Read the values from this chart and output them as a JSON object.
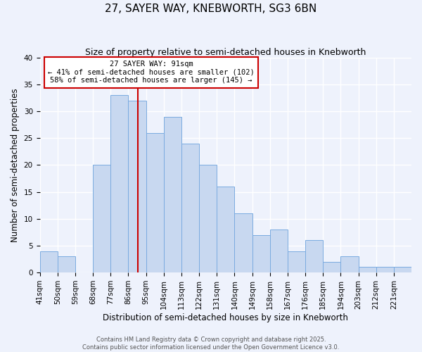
{
  "title": "27, SAYER WAY, KNEBWORTH, SG3 6BN",
  "subtitle": "Size of property relative to semi-detached houses in Knebworth",
  "xlabel": "Distribution of semi-detached houses by size in Knebworth",
  "ylabel": "Number of semi-detached properties",
  "bar_labels": [
    "41sqm",
    "50sqm",
    "59sqm",
    "68sqm",
    "77sqm",
    "86sqm",
    "95sqm",
    "104sqm",
    "113sqm",
    "122sqm",
    "131sqm",
    "140sqm",
    "149sqm",
    "158sqm",
    "167sqm",
    "176sqm",
    "185sqm",
    "194sqm",
    "203sqm",
    "212sqm",
    "221sqm"
  ],
  "bar_values": [
    4,
    3,
    0,
    20,
    33,
    32,
    26,
    29,
    24,
    20,
    16,
    11,
    7,
    8,
    4,
    6,
    2,
    3,
    1,
    1,
    1
  ],
  "bin_edges": [
    41,
    50,
    59,
    68,
    77,
    86,
    95,
    104,
    113,
    122,
    131,
    140,
    149,
    158,
    167,
    176,
    185,
    194,
    203,
    212,
    221,
    230
  ],
  "bar_color": "#c8d8f0",
  "bar_edge_color": "#7aabe0",
  "vline_x": 91,
  "vline_color": "#cc0000",
  "annotation_title": "27 SAYER WAY: 91sqm",
  "annotation_line1": "← 41% of semi-detached houses are smaller (102)",
  "annotation_line2": "58% of semi-detached houses are larger (145) →",
  "annotation_box_edge": "#cc0000",
  "ylim": [
    0,
    40
  ],
  "yticks": [
    0,
    5,
    10,
    15,
    20,
    25,
    30,
    35,
    40
  ],
  "footer1": "Contains HM Land Registry data © Crown copyright and database right 2025.",
  "footer2": "Contains public sector information licensed under the Open Government Licence v3.0.",
  "bg_color": "#eef2fc",
  "grid_color": "#ffffff",
  "title_fontsize": 11,
  "subtitle_fontsize": 9,
  "axis_label_fontsize": 8.5,
  "tick_fontsize": 7.5,
  "annotation_fontsize": 7.5,
  "footer_fontsize": 6
}
